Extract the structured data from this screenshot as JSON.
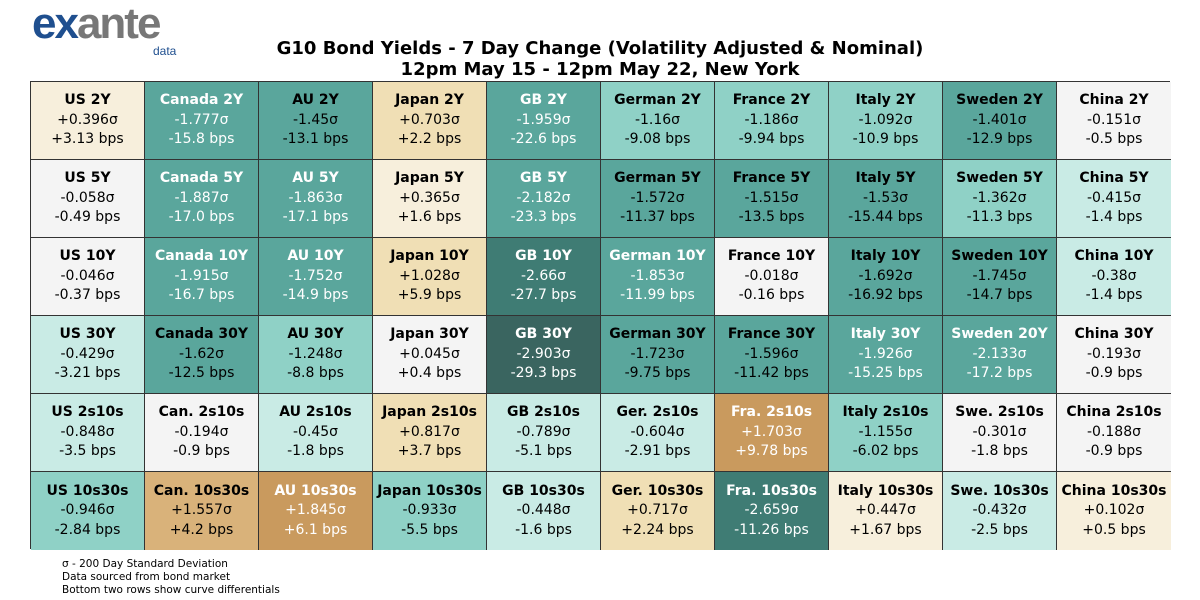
{
  "logo": {
    "brand_prefix": "ex",
    "brand_suffix": "ante",
    "sub": "data"
  },
  "title": "G10 Bond Yields - 7 Day Change (Volatility Adjusted & Nominal)",
  "subtitle": "12pm May 15 - 12pm May 22, New York",
  "colors": {
    "teal_darkest": "#3a6560",
    "teal_dark": "#3f7c74",
    "teal_mid": "#5aa69c",
    "teal_light": "#8fd1c6",
    "teal_pale": "#c9ebe5",
    "neutral": "#f4f4f4",
    "cream": "#f7efdc",
    "tan_light": "#f0dfb5",
    "tan": "#d9b27a",
    "tan_dark": "#c99a5e"
  },
  "chart_data": {
    "type": "heatmap",
    "title": "G10 Bond Yields - 7 Day Change (Volatility Adjusted & Nominal)",
    "subtitle": "12pm May 15 - 12pm May 22, New York",
    "cells": [
      [
        {
          "label": "US 2Y",
          "sigma": "+0.396σ",
          "bps": "+3.13 bps"
        },
        {
          "label": "Canada 2Y",
          "sigma": "-1.777σ",
          "bps": "-15.8 bps"
        },
        {
          "label": "AU 2Y",
          "sigma": "-1.45σ",
          "bps": "-13.1 bps"
        },
        {
          "label": "Japan 2Y",
          "sigma": "+0.703σ",
          "bps": "+2.2 bps"
        },
        {
          "label": "GB 2Y",
          "sigma": "-1.959σ",
          "bps": "-22.6 bps"
        },
        {
          "label": "German 2Y",
          "sigma": "-1.16σ",
          "bps": "-9.08 bps"
        },
        {
          "label": "France 2Y",
          "sigma": "-1.186σ",
          "bps": "-9.94 bps"
        },
        {
          "label": "Italy 2Y",
          "sigma": "-1.092σ",
          "bps": "-10.9 bps"
        },
        {
          "label": "Sweden 2Y",
          "sigma": "-1.401σ",
          "bps": "-12.9 bps"
        },
        {
          "label": "China 2Y",
          "sigma": "-0.151σ",
          "bps": "-0.5 bps"
        }
      ],
      [
        {
          "label": "US 5Y",
          "sigma": "-0.058σ",
          "bps": "-0.49 bps"
        },
        {
          "label": "Canada 5Y",
          "sigma": "-1.887σ",
          "bps": "-17.0 bps"
        },
        {
          "label": "AU 5Y",
          "sigma": "-1.863σ",
          "bps": "-17.1 bps"
        },
        {
          "label": "Japan 5Y",
          "sigma": "+0.365σ",
          "bps": "+1.6 bps"
        },
        {
          "label": "GB 5Y",
          "sigma": "-2.182σ",
          "bps": "-23.3 bps"
        },
        {
          "label": "German 5Y",
          "sigma": "-1.572σ",
          "bps": "-11.37 bps"
        },
        {
          "label": "France 5Y",
          "sigma": "-1.515σ",
          "bps": "-13.5 bps"
        },
        {
          "label": "Italy 5Y",
          "sigma": "-1.53σ",
          "bps": "-15.44 bps"
        },
        {
          "label": "Sweden 5Y",
          "sigma": "-1.362σ",
          "bps": "-11.3 bps"
        },
        {
          "label": "China 5Y",
          "sigma": "-0.415σ",
          "bps": "-1.4 bps"
        }
      ],
      [
        {
          "label": "US 10Y",
          "sigma": "-0.046σ",
          "bps": "-0.37 bps"
        },
        {
          "label": "Canada 10Y",
          "sigma": "-1.915σ",
          "bps": "-16.7 bps"
        },
        {
          "label": "AU 10Y",
          "sigma": "-1.752σ",
          "bps": "-14.9 bps"
        },
        {
          "label": "Japan 10Y",
          "sigma": "+1.028σ",
          "bps": "+5.9 bps"
        },
        {
          "label": "GB 10Y",
          "sigma": "-2.66σ",
          "bps": "-27.7 bps"
        },
        {
          "label": "German 10Y",
          "sigma": "-1.853σ",
          "bps": "-11.99 bps"
        },
        {
          "label": "France 10Y",
          "sigma": "-0.018σ",
          "bps": "-0.16 bps"
        },
        {
          "label": "Italy 10Y",
          "sigma": "-1.692σ",
          "bps": "-16.92 bps"
        },
        {
          "label": "Sweden 10Y",
          "sigma": "-1.745σ",
          "bps": "-14.7 bps"
        },
        {
          "label": "China 10Y",
          "sigma": "-0.38σ",
          "bps": "-1.4 bps"
        }
      ],
      [
        {
          "label": "US 30Y",
          "sigma": "-0.429σ",
          "bps": "-3.21 bps"
        },
        {
          "label": "Canada 30Y",
          "sigma": "-1.62σ",
          "bps": "-12.5 bps"
        },
        {
          "label": "AU 30Y",
          "sigma": "-1.248σ",
          "bps": "-8.8 bps"
        },
        {
          "label": "Japan 30Y",
          "sigma": "+0.045σ",
          "bps": "+0.4 bps"
        },
        {
          "label": "GB 30Y",
          "sigma": "-2.903σ",
          "bps": "-29.3 bps"
        },
        {
          "label": "German 30Y",
          "sigma": "-1.723σ",
          "bps": "-9.75 bps"
        },
        {
          "label": "France 30Y",
          "sigma": "-1.596σ",
          "bps": "-11.42 bps"
        },
        {
          "label": "Italy 30Y",
          "sigma": "-1.926σ",
          "bps": "-15.25 bps"
        },
        {
          "label": "Sweden 20Y",
          "sigma": "-2.133σ",
          "bps": "-17.2 bps"
        },
        {
          "label": "China 30Y",
          "sigma": "-0.193σ",
          "bps": "-0.9 bps"
        }
      ],
      [
        {
          "label": "US 2s10s",
          "sigma": "-0.848σ",
          "bps": "-3.5 bps"
        },
        {
          "label": "Can. 2s10s",
          "sigma": "-0.194σ",
          "bps": "-0.9 bps"
        },
        {
          "label": "AU 2s10s",
          "sigma": "-0.45σ",
          "bps": "-1.8 bps"
        },
        {
          "label": "Japan 2s10s",
          "sigma": "+0.817σ",
          "bps": "+3.7 bps"
        },
        {
          "label": "GB 2s10s",
          "sigma": "-0.789σ",
          "bps": "-5.1 bps"
        },
        {
          "label": "Ger. 2s10s",
          "sigma": "-0.604σ",
          "bps": "-2.91 bps"
        },
        {
          "label": "Fra. 2s10s",
          "sigma": "+1.703σ",
          "bps": "+9.78 bps"
        },
        {
          "label": "Italy 2s10s",
          "sigma": "-1.155σ",
          "bps": "-6.02 bps"
        },
        {
          "label": "Swe. 2s10s",
          "sigma": "-0.301σ",
          "bps": "-1.8 bps"
        },
        {
          "label": "China 2s10s",
          "sigma": "-0.188σ",
          "bps": "-0.9 bps"
        }
      ],
      [
        {
          "label": "US 10s30s",
          "sigma": "-0.946σ",
          "bps": "-2.84 bps"
        },
        {
          "label": "Can. 10s30s",
          "sigma": "+1.557σ",
          "bps": "+4.2 bps"
        },
        {
          "label": "AU 10s30s",
          "sigma": "+1.845σ",
          "bps": "+6.1 bps"
        },
        {
          "label": "Japan 10s30s",
          "sigma": "-0.933σ",
          "bps": "-5.5 bps"
        },
        {
          "label": "GB 10s30s",
          "sigma": "-0.448σ",
          "bps": "-1.6 bps"
        },
        {
          "label": "Ger. 10s30s",
          "sigma": "+0.717σ",
          "bps": "+2.24 bps"
        },
        {
          "label": "Fra. 10s30s",
          "sigma": "-2.659σ",
          "bps": "-11.26 bps"
        },
        {
          "label": "Italy 10s30s",
          "sigma": "+0.447σ",
          "bps": "+1.67 bps"
        },
        {
          "label": "Swe. 10s30s",
          "sigma": "-0.432σ",
          "bps": "-2.5 bps"
        },
        {
          "label": "China 10s30s",
          "sigma": "+0.102σ",
          "bps": "+0.5 bps"
        }
      ]
    ]
  },
  "notes": [
    "σ - 200 Day Standard Deviation",
    "Data sourced from bond market",
    "Bottom two rows show curve differentials"
  ]
}
